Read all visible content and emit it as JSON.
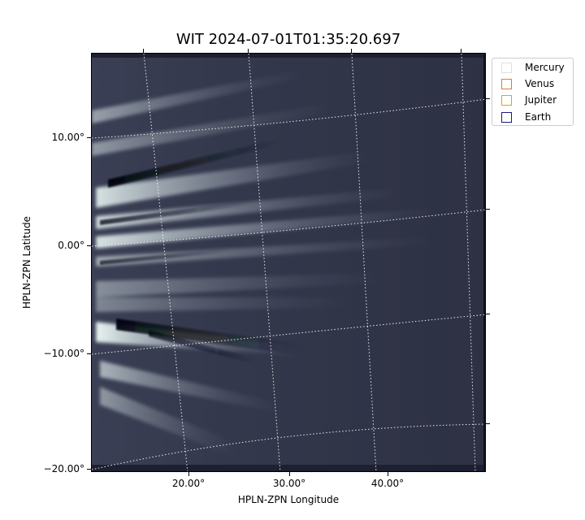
{
  "title": "WIT 2024-07-01T01:35:20.697",
  "axes": {
    "xlabel": "HPLN-ZPN Longitude",
    "ylabel": "HPLN-ZPN Latitude",
    "x_ticks": [
      "20.00°",
      "30.00°",
      "40.00°"
    ],
    "y_ticks": [
      "10.00°",
      "0.00°",
      "−10.00°",
      "−20.00°"
    ]
  },
  "legend": {
    "entries": [
      {
        "label": "Mercury",
        "color": "#e0e0e0"
      },
      {
        "label": "Venus",
        "color": "#e07a30"
      },
      {
        "label": "Jupiter",
        "color": "#e0a800"
      },
      {
        "label": "Earth",
        "color": "#1a1a7a"
      }
    ]
  },
  "colors": {
    "background_dark": "#2f3346",
    "streamer_light": "#dfeeee",
    "grid": "#ffffff"
  }
}
